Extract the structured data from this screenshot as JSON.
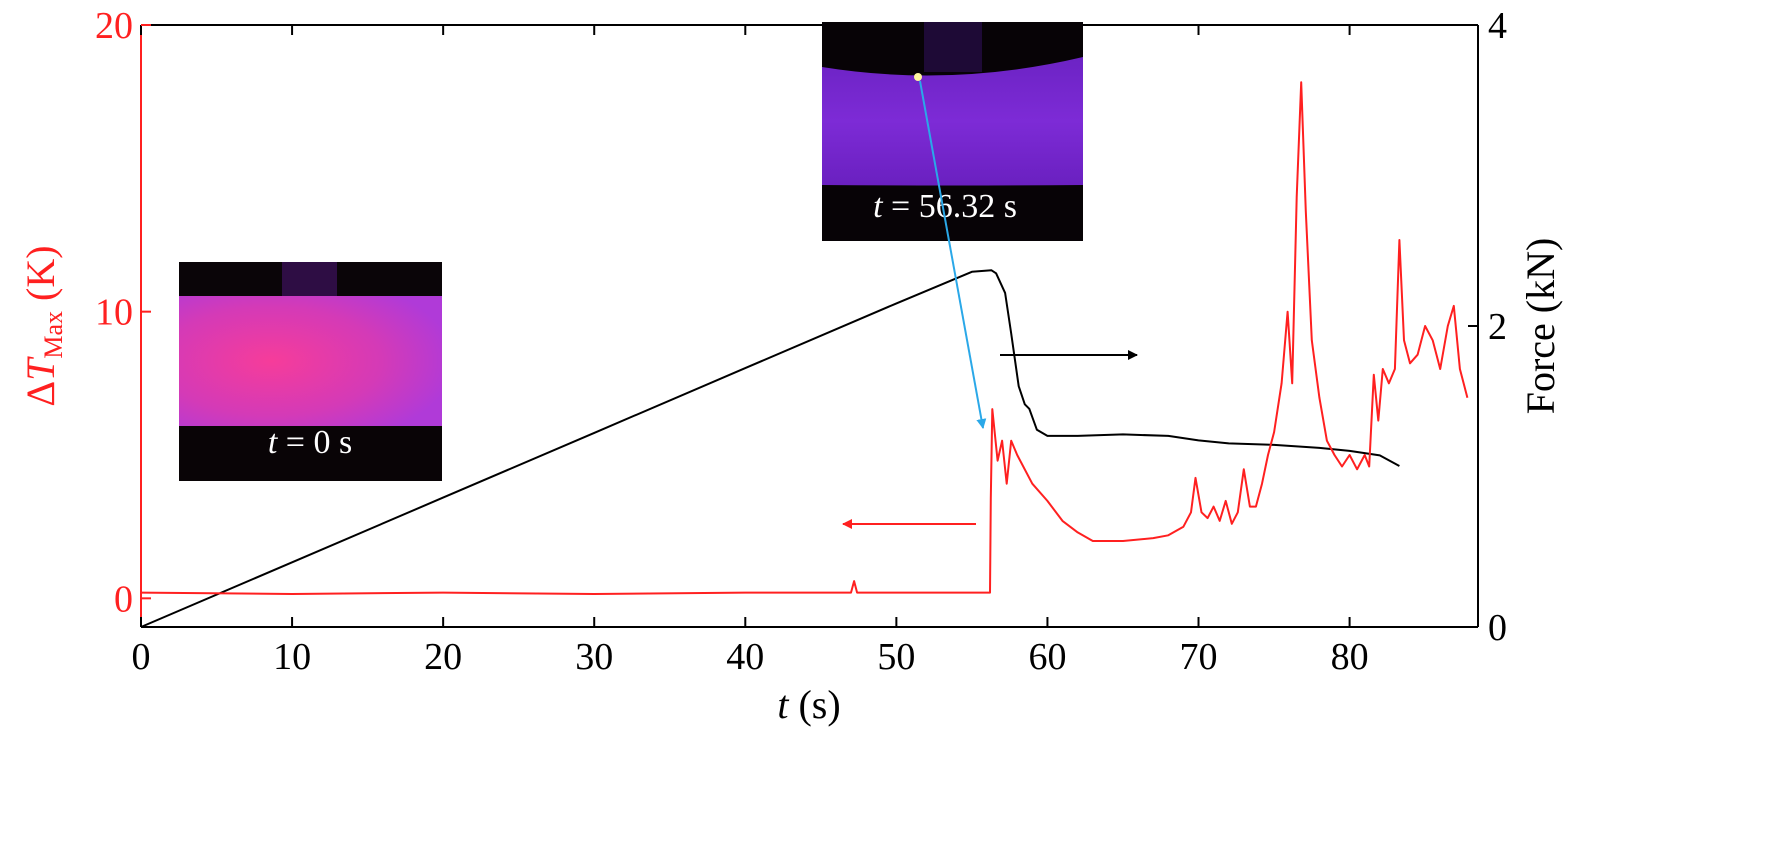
{
  "chart_data": {
    "type": "line",
    "xlabel": {
      "var": "t",
      "unit": " (s)"
    },
    "ylabel_left": {
      "prefix": "Δ",
      "var": "T",
      "sub": "Max",
      "unit": " (K)"
    },
    "ylabel_right": "Force (kN)",
    "xlim": [
      0,
      88.5
    ],
    "ylim_left": [
      -1,
      20
    ],
    "ylim_right": [
      0,
      4
    ],
    "x_ticks": [
      0,
      10,
      20,
      30,
      40,
      50,
      60,
      70,
      80
    ],
    "y_left_ticks": [
      0,
      10,
      20
    ],
    "y_right_ticks": [
      0,
      2,
      4
    ],
    "colors": {
      "temperature": "#ff2020",
      "force": "#000000",
      "pointer": "#2aa8e8"
    },
    "series": [
      {
        "name": "Force",
        "axis": "right",
        "color": "#000000",
        "x": [
          0,
          10,
          20,
          30,
          40,
          50,
          55,
          56.3,
          56.6,
          57.2,
          57.6,
          58.1,
          58.5,
          58.8,
          59.3,
          60,
          62,
          65,
          68,
          70,
          72,
          75,
          78,
          80,
          82,
          83.3
        ],
        "y": [
          0,
          0.43,
          0.86,
          1.29,
          1.72,
          2.15,
          2.36,
          2.37,
          2.35,
          2.22,
          1.95,
          1.6,
          1.48,
          1.45,
          1.31,
          1.27,
          1.27,
          1.28,
          1.27,
          1.24,
          1.22,
          1.21,
          1.19,
          1.17,
          1.14,
          1.07
        ]
      },
      {
        "name": "ΔT_Max",
        "axis": "left",
        "color": "#ff2020",
        "x": [
          0,
          10,
          20,
          30,
          40,
          47,
          47.2,
          47.4,
          48,
          56.2,
          56.25,
          56.35,
          56.7,
          57.0,
          57.3,
          57.6,
          58,
          59,
          60,
          61,
          62,
          63,
          65,
          67,
          68,
          69,
          69.5,
          69.8,
          70.2,
          70.6,
          71,
          71.4,
          71.8,
          72.2,
          72.6,
          73,
          73.4,
          73.8,
          74.2,
          74.6,
          75,
          75.5,
          75.9,
          76.2,
          76.5,
          76.8,
          77.1,
          77.5,
          78,
          78.5,
          79,
          79.5,
          80,
          80.5,
          81,
          81.3,
          81.6,
          81.9,
          82.2,
          82.6,
          83,
          83.3,
          83.6,
          84,
          84.5,
          85,
          85.5,
          86,
          86.5,
          86.9,
          87.3,
          87.8
        ],
        "y": [
          0.2,
          0.15,
          0.2,
          0.15,
          0.2,
          0.2,
          0.6,
          0.2,
          0.2,
          0.2,
          3.5,
          6.6,
          4.8,
          5.5,
          4.0,
          5.5,
          5.0,
          4.0,
          3.4,
          2.7,
          2.3,
          2.0,
          2.0,
          2.1,
          2.2,
          2.5,
          3.0,
          4.2,
          3.0,
          2.8,
          3.2,
          2.7,
          3.4,
          2.6,
          3.0,
          4.5,
          3.2,
          3.2,
          4.0,
          5.0,
          5.8,
          7.5,
          10.0,
          7.5,
          14.0,
          18.0,
          13.5,
          9.0,
          7.0,
          5.5,
          5.0,
          4.6,
          5.0,
          4.5,
          5.0,
          4.6,
          7.8,
          6.2,
          8.0,
          7.5,
          8.0,
          12.5,
          9.0,
          8.2,
          8.5,
          9.5,
          9.0,
          8.0,
          9.5,
          10.2,
          8.0,
          7.0
        ]
      }
    ],
    "insets": [
      {
        "label": {
          "var": "t",
          "value": " = 0 s"
        }
      },
      {
        "label": {
          "var": "t",
          "value": " = 56.32 s"
        }
      }
    ],
    "annotations": [
      {
        "type": "arrow",
        "target": "left axis (ΔT_Max)",
        "color": "#ff2020"
      },
      {
        "type": "arrow",
        "target": "right axis (Force)",
        "color": "#000000"
      },
      {
        "type": "arrow",
        "description": "hot spot to temperature peak",
        "color": "#2aa8e8"
      }
    ]
  }
}
